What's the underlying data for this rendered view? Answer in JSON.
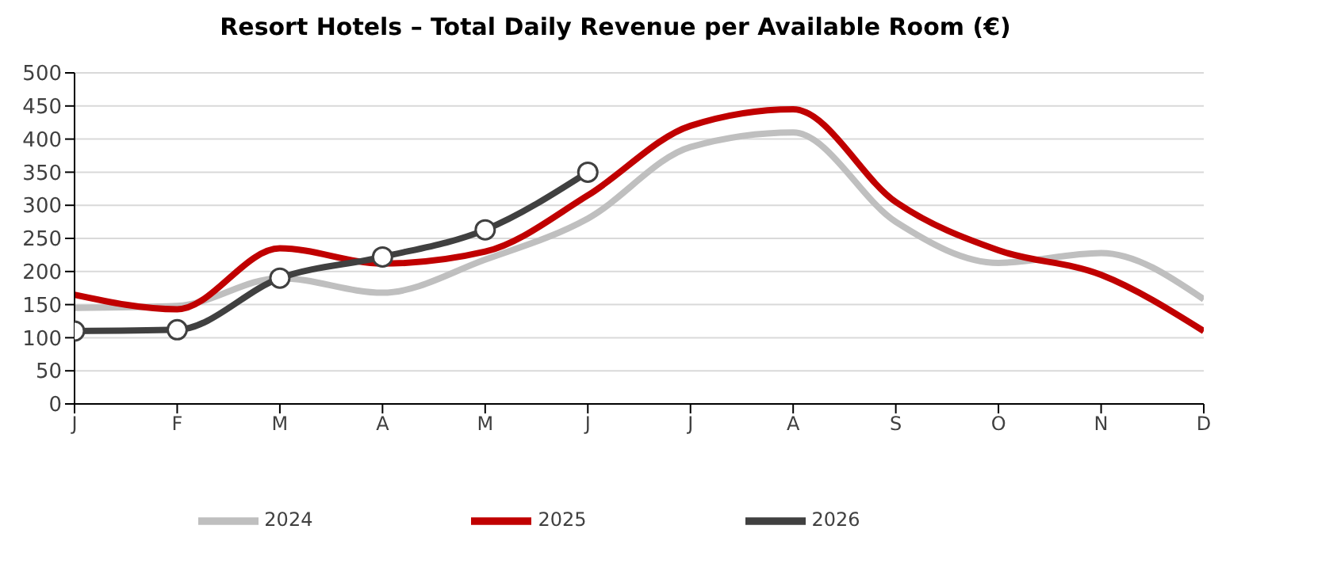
{
  "chart_data": {
    "type": "line",
    "title": "Resort Hotels – Total Daily Revenue per Available Room (€)",
    "categories": [
      "J",
      "F",
      "M",
      "A",
      "M",
      "J",
      "J",
      "A",
      "S",
      "O",
      "N",
      "D"
    ],
    "series": [
      {
        "name": "2024",
        "color": "#bfbfbf",
        "values": [
          145,
          148,
          190,
          168,
          218,
          280,
          388,
          410,
          275,
          213,
          228,
          158
        ]
      },
      {
        "name": "2025",
        "color": "#c00000",
        "values": [
          165,
          143,
          235,
          212,
          230,
          315,
          420,
          445,
          305,
          232,
          195,
          110
        ]
      },
      {
        "name": "2026",
        "color": "#404040",
        "marker": "circle",
        "values": [
          110,
          112,
          190,
          222,
          263,
          350,
          null,
          null,
          null,
          null,
          null,
          null
        ]
      }
    ],
    "ylim": [
      0,
      500
    ],
    "yticks": [
      0,
      50,
      100,
      150,
      200,
      250,
      300,
      350,
      400,
      450,
      500
    ],
    "grid": "y",
    "legend": "bottom",
    "marker": "none",
    "line_style": "solid"
  }
}
